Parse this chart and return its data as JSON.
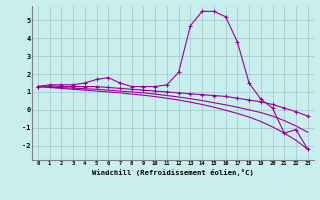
{
  "x": [
    0,
    1,
    2,
    3,
    4,
    5,
    6,
    7,
    8,
    9,
    10,
    11,
    12,
    13,
    14,
    15,
    16,
    17,
    18,
    19,
    20,
    21,
    22,
    23
  ],
  "line1": [
    1.3,
    1.4,
    1.4,
    1.4,
    1.5,
    1.7,
    1.8,
    1.5,
    1.3,
    1.3,
    1.3,
    1.4,
    2.1,
    4.7,
    5.5,
    5.5,
    5.2,
    3.8,
    1.5,
    0.6,
    0.1,
    -1.3,
    -1.1,
    -2.2
  ],
  "line2": [
    1.3,
    1.35,
    1.3,
    1.3,
    1.3,
    1.3,
    1.25,
    1.2,
    1.15,
    1.1,
    1.05,
    1.0,
    0.95,
    0.9,
    0.85,
    0.8,
    0.75,
    0.65,
    0.55,
    0.45,
    0.3,
    0.1,
    -0.1,
    -0.35
  ],
  "line3": [
    1.3,
    1.27,
    1.24,
    1.21,
    1.18,
    1.15,
    1.1,
    1.05,
    1.0,
    0.95,
    0.88,
    0.8,
    0.72,
    0.62,
    0.52,
    0.4,
    0.28,
    0.15,
    0.0,
    -0.15,
    -0.35,
    -0.6,
    -0.9,
    -1.25
  ],
  "line4": [
    1.3,
    1.25,
    1.2,
    1.15,
    1.1,
    1.05,
    1.0,
    0.95,
    0.88,
    0.82,
    0.74,
    0.65,
    0.55,
    0.43,
    0.3,
    0.15,
    -0.02,
    -0.2,
    -0.4,
    -0.65,
    -0.95,
    -1.3,
    -1.7,
    -2.2
  ],
  "bg_color": "#c8eeee",
  "grid_color": "#a0c8c8",
  "line_color": "#990099",
  "xlabel": "Windchill (Refroidissement éolien,°C)",
  "ylim": [
    -2.8,
    5.8
  ],
  "xlim": [
    -0.5,
    23.5
  ],
  "yticks": [
    -2,
    -1,
    0,
    1,
    2,
    3,
    4,
    5
  ],
  "xticks": [
    0,
    1,
    2,
    3,
    4,
    5,
    6,
    7,
    8,
    9,
    10,
    11,
    12,
    13,
    14,
    15,
    16,
    17,
    18,
    19,
    20,
    21,
    22,
    23
  ]
}
